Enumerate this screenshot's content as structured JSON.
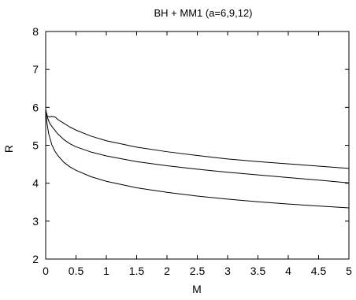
{
  "chart_data": {
    "type": "line",
    "title": "BH + MM1 (a=6,9,12)",
    "xlabel": "M",
    "ylabel": "R",
    "xlim": [
      0,
      5
    ],
    "ylim": [
      2,
      8
    ],
    "xticks": [
      "0",
      "0.5",
      "1",
      "1.5",
      "2",
      "2.5",
      "3",
      "3.5",
      "4",
      "4.5",
      "5"
    ],
    "yticks": [
      "2",
      "3",
      "4",
      "5",
      "6",
      "7",
      "8"
    ],
    "grid": false,
    "legend": "none",
    "line_color": "#000000",
    "series": [
      {
        "x": [
          0.0,
          0.03,
          0.06,
          0.1,
          0.15,
          0.2,
          0.3,
          0.4,
          0.5,
          0.75,
          1.0,
          1.5,
          2.0,
          2.5,
          3.0,
          3.5,
          4.0,
          4.5,
          5.0
        ],
        "y": [
          5.9,
          5.76,
          5.75,
          5.76,
          5.75,
          5.68,
          5.58,
          5.48,
          5.4,
          5.24,
          5.12,
          4.95,
          4.83,
          4.73,
          4.64,
          4.57,
          4.51,
          4.45,
          4.39
        ]
      },
      {
        "x": [
          0.0,
          0.03,
          0.06,
          0.1,
          0.2,
          0.3,
          0.4,
          0.5,
          0.75,
          1.0,
          1.5,
          2.0,
          2.5,
          3.0,
          3.5,
          4.0,
          4.5,
          5.0
        ],
        "y": [
          5.95,
          5.73,
          5.6,
          5.5,
          5.3,
          5.15,
          5.04,
          4.96,
          4.82,
          4.72,
          4.57,
          4.46,
          4.37,
          4.29,
          4.22,
          4.15,
          4.08,
          4.01
        ]
      },
      {
        "x": [
          0.0,
          0.02,
          0.05,
          0.1,
          0.15,
          0.2,
          0.3,
          0.4,
          0.5,
          0.75,
          1.0,
          1.5,
          2.0,
          2.5,
          3.0,
          3.5,
          4.0,
          4.5,
          5.0
        ],
        "y": [
          5.9,
          5.6,
          5.3,
          5.02,
          4.85,
          4.73,
          4.55,
          4.43,
          4.34,
          4.17,
          4.05,
          3.88,
          3.76,
          3.66,
          3.58,
          3.51,
          3.45,
          3.4,
          3.35
        ]
      }
    ]
  }
}
